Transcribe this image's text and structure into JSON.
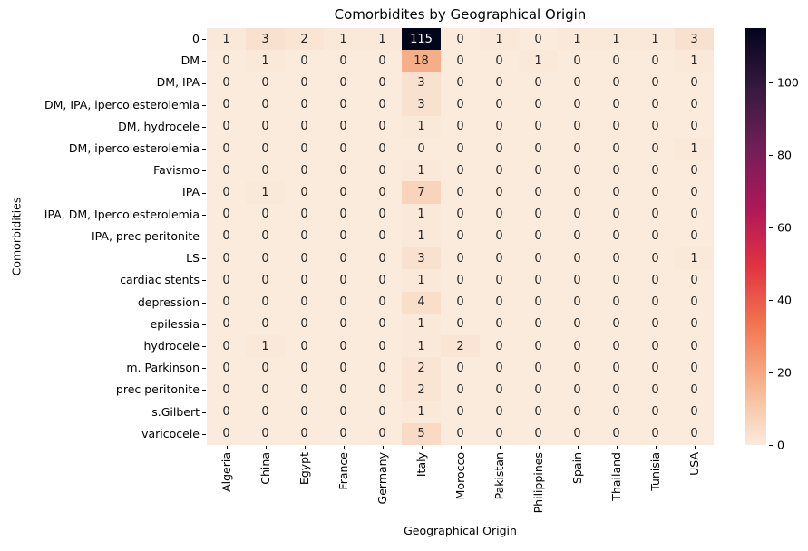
{
  "chart_data": {
    "type": "heatmap",
    "title": "Comorbidites by Geographical Origin",
    "xlabel": "Geographical Origin",
    "ylabel": "Comorbidities",
    "x_categories": [
      "Algeria",
      "China",
      "Egypt",
      "France",
      "Germany",
      "Italy",
      "Morocco",
      "Pakistan",
      "Philippines",
      "Spain",
      "Thailand",
      "Tunisia",
      "USA"
    ],
    "y_categories": [
      "0",
      "DM",
      "DM, IPA",
      "DM, IPA, ipercolesterolemia",
      "DM, hydrocele",
      "DM, ipercolesterolemia",
      "Favismo",
      "IPA",
      "IPA, DM, Ipercolesterolemia",
      "IPA, prec peritonite",
      "LS",
      "cardiac stents",
      "depression",
      "epilessia",
      "hydrocele",
      "m. Parkinson",
      "prec peritonite",
      "s.Gilbert",
      "varicocele"
    ],
    "values": [
      [
        1,
        3,
        2,
        1,
        1,
        115,
        0,
        1,
        0,
        1,
        1,
        1,
        3
      ],
      [
        0,
        1,
        0,
        0,
        0,
        18,
        0,
        0,
        1,
        0,
        0,
        0,
        1
      ],
      [
        0,
        0,
        0,
        0,
        0,
        3,
        0,
        0,
        0,
        0,
        0,
        0,
        0
      ],
      [
        0,
        0,
        0,
        0,
        0,
        3,
        0,
        0,
        0,
        0,
        0,
        0,
        0
      ],
      [
        0,
        0,
        0,
        0,
        0,
        1,
        0,
        0,
        0,
        0,
        0,
        0,
        0
      ],
      [
        0,
        0,
        0,
        0,
        0,
        0,
        0,
        0,
        0,
        0,
        0,
        0,
        1
      ],
      [
        0,
        0,
        0,
        0,
        0,
        1,
        0,
        0,
        0,
        0,
        0,
        0,
        0
      ],
      [
        0,
        1,
        0,
        0,
        0,
        7,
        0,
        0,
        0,
        0,
        0,
        0,
        0
      ],
      [
        0,
        0,
        0,
        0,
        0,
        1,
        0,
        0,
        0,
        0,
        0,
        0,
        0
      ],
      [
        0,
        0,
        0,
        0,
        0,
        1,
        0,
        0,
        0,
        0,
        0,
        0,
        0
      ],
      [
        0,
        0,
        0,
        0,
        0,
        3,
        0,
        0,
        0,
        0,
        0,
        0,
        1
      ],
      [
        0,
        0,
        0,
        0,
        0,
        1,
        0,
        0,
        0,
        0,
        0,
        0,
        0
      ],
      [
        0,
        0,
        0,
        0,
        0,
        4,
        0,
        0,
        0,
        0,
        0,
        0,
        0
      ],
      [
        0,
        0,
        0,
        0,
        0,
        1,
        0,
        0,
        0,
        0,
        0,
        0,
        0
      ],
      [
        0,
        1,
        0,
        0,
        0,
        1,
        2,
        0,
        0,
        0,
        0,
        0,
        0
      ],
      [
        0,
        0,
        0,
        0,
        0,
        2,
        0,
        0,
        0,
        0,
        0,
        0,
        0
      ],
      [
        0,
        0,
        0,
        0,
        0,
        2,
        0,
        0,
        0,
        0,
        0,
        0,
        0
      ],
      [
        0,
        0,
        0,
        0,
        0,
        1,
        0,
        0,
        0,
        0,
        0,
        0,
        0
      ],
      [
        0,
        0,
        0,
        0,
        0,
        5,
        0,
        0,
        0,
        0,
        0,
        0,
        0
      ]
    ],
    "vmin": 0,
    "vmax": 115,
    "colormap": "rocket_r",
    "colorbar_ticks": [
      "0",
      "20",
      "40",
      "60",
      "80",
      "100"
    ],
    "legend_position": "right",
    "colors": {
      "colormap_stops_dark_to_light": [
        "#03051a",
        "#35193e",
        "#701f57",
        "#ad1759",
        "#e13342",
        "#f37651",
        "#f6b48f",
        "#faebdd"
      ],
      "annotation_dark_text": "#262626",
      "annotation_light_text": "#ffffff",
      "axis_text": "#000000",
      "figure_background": "#ffffff"
    }
  }
}
